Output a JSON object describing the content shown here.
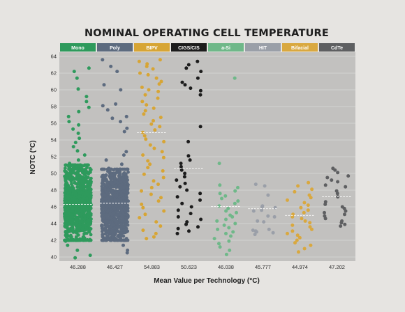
{
  "colors": {
    "background": "#e6e4e1",
    "plot_background": "#c2c1bf",
    "gridline": "#d9d8d6",
    "mean_line": "#ffffff"
  },
  "chart_data": {
    "type": "scatter",
    "subtype": "strip-plot",
    "title": "NOMINAL OPERATING CELL TEMPERATURE",
    "ylabel": "NOTC (°C)",
    "xlabel": "Mean Value per Technology (°C)",
    "ylim": [
      39.5,
      64.5
    ],
    "yticks": [
      "40",
      "42",
      "44",
      "46",
      "48",
      "50",
      "52",
      "54",
      "56",
      "58",
      "60",
      "62",
      "64"
    ],
    "grid": true,
    "categories": [
      "Mono",
      "Poly",
      "BIPV",
      "CIGS/CIS",
      "a-Si",
      "HIT",
      "Bifacial",
      "CdTe"
    ],
    "category_colors": [
      "#2e9a5c",
      "#5d6b7f",
      "#d7a535",
      "#1c1c1c",
      "#6fb889",
      "#9a9fa8",
      "#d9a83f",
      "#5e5f61"
    ],
    "mean_labels": [
      "46.288",
      "46.427",
      "54.883",
      "50.623",
      "46.038",
      "45.777",
      "44.974",
      "47.202"
    ],
    "means": [
      46.288,
      46.427,
      54.883,
      50.623,
      46.038,
      45.777,
      44.974,
      47.202
    ],
    "series": [
      {
        "name": "Mono",
        "dense_band": [
          42,
          51
        ],
        "points": [
          62.6,
          62.2,
          61.4,
          60.1,
          59.2,
          58.6,
          57.9,
          57.4,
          56.8,
          56.2,
          55.8,
          55.3,
          54.8,
          54.2,
          53.7,
          53.2,
          52.7,
          52.2,
          51.6,
          51.2,
          50.6,
          49.8,
          48.9,
          48.2,
          47.4,
          46.6,
          45.8,
          45.0,
          44.2,
          43.4,
          42.6,
          41.9,
          41.4,
          40.8,
          40.2,
          39.9
        ]
      },
      {
        "name": "Poly",
        "dense_band": [
          42,
          50.5
        ],
        "points": [
          63.6,
          62.8,
          62.2,
          60.6,
          60.0,
          58.3,
          58.1,
          57.6,
          56.8,
          56.6,
          56.2,
          55.4,
          55.0,
          52.6,
          52.2,
          51.6,
          51.1,
          50.6,
          49.8,
          48.6,
          47.4,
          46.2,
          45.0,
          43.8,
          42.6,
          41.4,
          40.8,
          40.5
        ]
      },
      {
        "name": "BIPV",
        "points": [
          63.6,
          63.4,
          63.1,
          62.8,
          62.5,
          62.0,
          61.8,
          61.4,
          61.0,
          60.7,
          60.3,
          60.0,
          59.8,
          59.4,
          59.0,
          58.6,
          58.2,
          57.8,
          57.5,
          57.1,
          56.7,
          56.3,
          55.9,
          55.6,
          55.2,
          54.9,
          54.5,
          54.1,
          53.8,
          53.4,
          53.0,
          52.6,
          52.2,
          51.9,
          51.5,
          51.1,
          50.7,
          50.3,
          49.9,
          49.5,
          49.1,
          48.7,
          48.3,
          47.9,
          47.5,
          47.1,
          46.7,
          46.3,
          45.9,
          45.5,
          45.1,
          44.7,
          44.2,
          43.7,
          43.2,
          42.8,
          42.4,
          42.2
        ]
      },
      {
        "name": "CIGS/CIS",
        "points": [
          63.4,
          63.0,
          62.6,
          62.2,
          61.4,
          60.9,
          60.6,
          60.2,
          59.9,
          59.4,
          55.6,
          53.8,
          52.1,
          51.6,
          51.2,
          50.8,
          50.4,
          50.0,
          49.6,
          49.2,
          48.8,
          48.4,
          48.0,
          47.6,
          47.2,
          46.8,
          46.4,
          46.0,
          45.6,
          45.2,
          44.8,
          44.5,
          44.2,
          43.9,
          43.6,
          43.4,
          43.1,
          42.8
        ]
      },
      {
        "name": "a-Si",
        "points": [
          61.4,
          51.2,
          48.6,
          48.3,
          47.9,
          47.6,
          47.3,
          47.0,
          46.7,
          46.4,
          46.1,
          45.8,
          45.5,
          45.3,
          45.0,
          44.8,
          44.5,
          44.3,
          44.0,
          43.8,
          43.5,
          43.3,
          43.0,
          42.8,
          42.5,
          42.2,
          41.9,
          41.6,
          41.2,
          40.8,
          40.3
        ]
      },
      {
        "name": "HIT",
        "points": [
          48.7,
          48.5,
          47.4,
          46.1,
          46.0,
          45.9,
          45.6,
          45.5,
          44.9,
          44.8,
          44.3,
          44.2,
          43.3,
          43.2,
          43.1,
          43.0,
          42.9,
          42.7
        ]
      },
      {
        "name": "Bifacial",
        "points": [
          48.9,
          48.5,
          48.1,
          47.8,
          47.4,
          47.1,
          46.8,
          46.5,
          46.2,
          45.9,
          45.6,
          45.3,
          45.1,
          44.8,
          44.6,
          44.3,
          44.1,
          43.8,
          43.6,
          43.3,
          43.1,
          42.8,
          42.6,
          42.3,
          42.0,
          41.7,
          41.4,
          41.0,
          40.6
        ]
      },
      {
        "name": "CdTe",
        "points": [
          50.6,
          50.4,
          50.1,
          49.7,
          49.5,
          49.2,
          49.0,
          48.6,
          48.4,
          47.9,
          47.6,
          47.2,
          46.6,
          46.3,
          46.0,
          45.8,
          45.5,
          45.3,
          45.1,
          44.9,
          44.6,
          44.3,
          44.1,
          43.9,
          43.7
        ]
      }
    ]
  }
}
